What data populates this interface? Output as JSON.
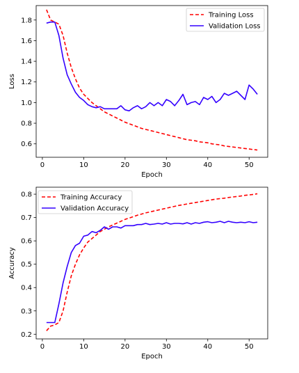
{
  "chart_data": [
    {
      "type": "line",
      "title": "",
      "xlabel": "Epoch",
      "ylabel": "Loss",
      "xlim": [
        -1.5,
        54.5
      ],
      "ylim": [
        0.47,
        1.94
      ],
      "xticks": [
        0,
        10,
        20,
        30,
        40,
        50
      ],
      "yticks": [
        0.6,
        0.8,
        1.0,
        1.2,
        1.4,
        1.6,
        1.8
      ],
      "grid": false,
      "legend_position": "upper-right",
      "x": [
        1,
        2,
        3,
        4,
        5,
        6,
        7,
        8,
        9,
        10,
        11,
        12,
        13,
        14,
        15,
        16,
        17,
        18,
        19,
        20,
        21,
        22,
        23,
        24,
        25,
        26,
        27,
        28,
        29,
        30,
        31,
        32,
        33,
        34,
        35,
        36,
        37,
        38,
        39,
        40,
        41,
        42,
        43,
        44,
        45,
        46,
        47,
        48,
        49,
        50,
        51,
        52
      ],
      "series": [
        {
          "name": "Training Loss",
          "color": "#ff0000",
          "dash": "dashed",
          "values": [
            1.9,
            1.8,
            1.78,
            1.76,
            1.65,
            1.48,
            1.34,
            1.23,
            1.14,
            1.08,
            1.04,
            1.0,
            0.97,
            0.94,
            0.91,
            0.89,
            0.87,
            0.85,
            0.83,
            0.81,
            0.795,
            0.78,
            0.765,
            0.75,
            0.74,
            0.73,
            0.72,
            0.71,
            0.7,
            0.69,
            0.68,
            0.67,
            0.66,
            0.65,
            0.64,
            0.635,
            0.63,
            0.62,
            0.615,
            0.61,
            0.6,
            0.595,
            0.59,
            0.58,
            0.575,
            0.57,
            0.565,
            0.56,
            0.555,
            0.55,
            0.545,
            0.54
          ]
        },
        {
          "name": "Validation Loss",
          "color": "#3300ff",
          "dash": "solid",
          "values": [
            1.77,
            1.78,
            1.78,
            1.65,
            1.43,
            1.27,
            1.18,
            1.1,
            1.05,
            1.02,
            0.98,
            0.96,
            0.95,
            0.96,
            0.94,
            0.94,
            0.94,
            0.94,
            0.97,
            0.93,
            0.92,
            0.95,
            0.97,
            0.94,
            0.96,
            1.0,
            0.97,
            1.0,
            0.97,
            1.03,
            1.01,
            0.97,
            1.02,
            1.08,
            0.98,
            1.0,
            1.01,
            0.98,
            1.05,
            1.03,
            1.06,
            1.0,
            1.03,
            1.09,
            1.07,
            1.09,
            1.11,
            1.07,
            1.03,
            1.17,
            1.13,
            1.08
          ]
        }
      ]
    },
    {
      "type": "line",
      "title": "",
      "xlabel": "Epoch",
      "ylabel": "Accuracy",
      "xlim": [
        -1.5,
        54.5
      ],
      "ylim": [
        0.18,
        0.83
      ],
      "xticks": [
        0,
        10,
        20,
        30,
        40,
        50
      ],
      "yticks": [
        0.2,
        0.3,
        0.4,
        0.5,
        0.6,
        0.7,
        0.8
      ],
      "grid": false,
      "legend_position": "upper-left",
      "x": [
        1,
        2,
        3,
        4,
        5,
        6,
        7,
        8,
        9,
        10,
        11,
        12,
        13,
        14,
        15,
        16,
        17,
        18,
        19,
        20,
        21,
        22,
        23,
        24,
        25,
        26,
        27,
        28,
        29,
        30,
        31,
        32,
        33,
        34,
        35,
        36,
        37,
        38,
        39,
        40,
        41,
        42,
        43,
        44,
        45,
        46,
        47,
        48,
        49,
        50,
        51,
        52
      ],
      "series": [
        {
          "name": "Training Accuracy",
          "color": "#ff0000",
          "dash": "dashed",
          "values": [
            0.215,
            0.235,
            0.24,
            0.25,
            0.3,
            0.38,
            0.45,
            0.5,
            0.54,
            0.57,
            0.595,
            0.61,
            0.625,
            0.64,
            0.65,
            0.66,
            0.668,
            0.676,
            0.684,
            0.692,
            0.698,
            0.704,
            0.71,
            0.715,
            0.72,
            0.724,
            0.728,
            0.732,
            0.736,
            0.74,
            0.744,
            0.748,
            0.752,
            0.755,
            0.758,
            0.761,
            0.764,
            0.767,
            0.77,
            0.773,
            0.776,
            0.779,
            0.781,
            0.783,
            0.786,
            0.788,
            0.79,
            0.792,
            0.795,
            0.797,
            0.799,
            0.802
          ]
        },
        {
          "name": "Validation Accuracy",
          "color": "#3300ff",
          "dash": "solid",
          "values": [
            0.25,
            0.25,
            0.25,
            0.33,
            0.42,
            0.49,
            0.55,
            0.58,
            0.59,
            0.62,
            0.625,
            0.64,
            0.635,
            0.645,
            0.66,
            0.65,
            0.66,
            0.66,
            0.655,
            0.665,
            0.665,
            0.665,
            0.67,
            0.67,
            0.675,
            0.67,
            0.672,
            0.675,
            0.672,
            0.678,
            0.672,
            0.675,
            0.675,
            0.673,
            0.678,
            0.672,
            0.678,
            0.675,
            0.68,
            0.682,
            0.678,
            0.68,
            0.684,
            0.678,
            0.684,
            0.68,
            0.678,
            0.68,
            0.678,
            0.682,
            0.678,
            0.68
          ]
        }
      ]
    }
  ]
}
